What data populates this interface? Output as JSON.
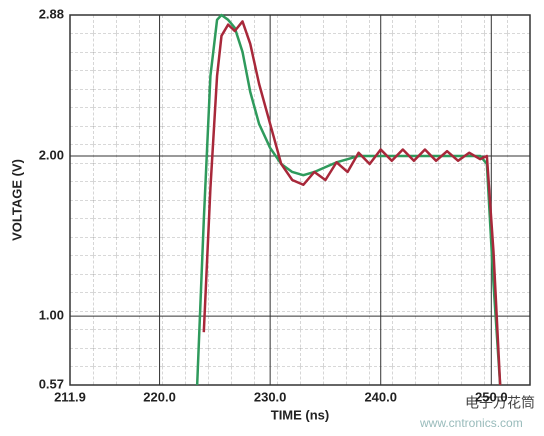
{
  "chart_data": {
    "type": "line",
    "x_label": "TIME (ns)",
    "y_label": "VOLTAGE (V)",
    "x": [
      223.4,
      224.0,
      224.6,
      225.2,
      225.6,
      226.2,
      226.8,
      227.5,
      228.2,
      229.0,
      230.0,
      231.0,
      232.0,
      233.0,
      234.0,
      235.0,
      236.0,
      237.0,
      238.0,
      239.0,
      240.0,
      241.0,
      242.0,
      243.0,
      244.0,
      245.0,
      246.0,
      247.0,
      248.0,
      249.0,
      249.6,
      250.2,
      250.8
    ],
    "series": [
      {
        "color": "#2f9a5c",
        "values": [
          0.57,
          1.6,
          2.5,
          2.85,
          2.88,
          2.85,
          2.8,
          2.65,
          2.4,
          2.2,
          2.05,
          1.95,
          1.9,
          1.88,
          1.9,
          1.93,
          1.96,
          1.98,
          2.0,
          2.0,
          2.0,
          2.0,
          2.0,
          2.0,
          2.0,
          2.0,
          2.0,
          2.0,
          2.0,
          2.0,
          1.95,
          1.2,
          0.57
        ]
      },
      {
        "color": "#a8283a",
        "values": [
          null,
          0.9,
          1.8,
          2.5,
          2.75,
          2.82,
          2.78,
          2.84,
          2.7,
          2.45,
          2.2,
          1.95,
          1.85,
          1.82,
          1.9,
          1.85,
          1.96,
          1.9,
          2.02,
          1.95,
          2.04,
          1.97,
          2.04,
          1.97,
          2.04,
          1.97,
          2.03,
          1.97,
          2.02,
          1.98,
          2.0,
          1.4,
          0.57
        ]
      }
    ],
    "xlim": [
      211.9,
      253.5
    ],
    "xticks": [
      211.9,
      {
        "value": 220,
        "label": "220.0"
      },
      {
        "value": 230,
        "label": "230.0"
      },
      {
        "value": 240,
        "label": "240.0"
      },
      {
        "value": 250,
        "label": "250.0"
      }
    ],
    "ylim": [
      0.57,
      2.88
    ],
    "yticks": [
      0.57,
      {
        "value": 1,
        "label": "1.00"
      },
      {
        "value": 2,
        "label": "2.00"
      },
      2.88
    ],
    "grid": true,
    "watermark": [
      "电子万花筒",
      "www.cntronics.com"
    ]
  }
}
